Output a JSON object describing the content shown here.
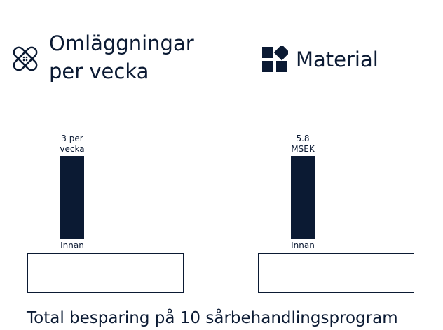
{
  "colors": {
    "bar": "#0b1a33",
    "text": "#0b1a33",
    "background": "#ffffff"
  },
  "panels": [
    {
      "icon": "bandage-icon",
      "title": "Omläggningar\nper vecka"
    },
    {
      "icon": "shapes-icon",
      "title": "Material"
    }
  ],
  "chart_data": [
    {
      "type": "bar",
      "title": "Omläggningar per vecka",
      "categories": [
        "Innan"
      ],
      "values": [
        3
      ],
      "value_labels": [
        "3 per\nvecka"
      ],
      "xlabel": "",
      "ylabel": "",
      "ylim": [
        0,
        3
      ],
      "grid": false
    },
    {
      "type": "bar",
      "title": "Material",
      "categories": [
        "Innan"
      ],
      "values": [
        5.8
      ],
      "value_labels": [
        "5.8\nMSEK"
      ],
      "xlabel": "",
      "ylabel": "",
      "ylim": [
        0,
        5.8
      ],
      "grid": false
    }
  ],
  "footer": "Total besparing på 10 sårbehandlingsprogram"
}
